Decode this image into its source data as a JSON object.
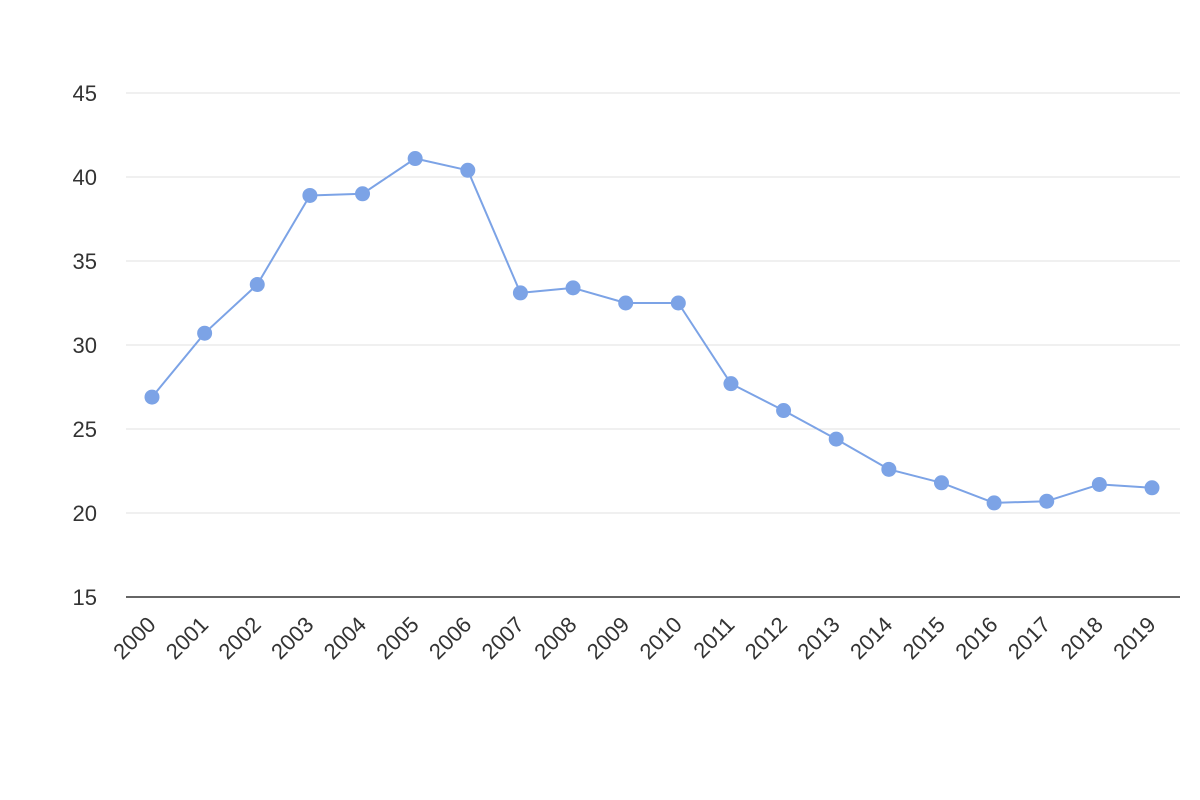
{
  "chart_data": {
    "type": "line",
    "title": "",
    "xlabel": "",
    "ylabel": "",
    "x": [
      "2000",
      "2001",
      "2002",
      "2003",
      "2004",
      "2005",
      "2006",
      "2007",
      "2008",
      "2009",
      "2010",
      "2011",
      "2012",
      "2013",
      "2014",
      "2015",
      "2016",
      "2017",
      "2018",
      "2019"
    ],
    "series": [
      {
        "values": [
          26.9,
          30.7,
          33.6,
          38.9,
          39.0,
          41.1,
          40.4,
          33.1,
          33.4,
          32.5,
          32.5,
          27.7,
          26.1,
          24.4,
          22.6,
          21.8,
          20.6,
          20.7,
          21.7,
          21.5
        ]
      }
    ],
    "ylim": [
      15,
      45
    ],
    "yticks": [
      15,
      20,
      25,
      30,
      35,
      40,
      45
    ],
    "grid": true,
    "legend": "none",
    "colors": {
      "line": "#7ca3e6",
      "marker": "#7ca3e6",
      "grid": "#e0e0e0",
      "axis": "#333333",
      "text": "#333333"
    }
  }
}
